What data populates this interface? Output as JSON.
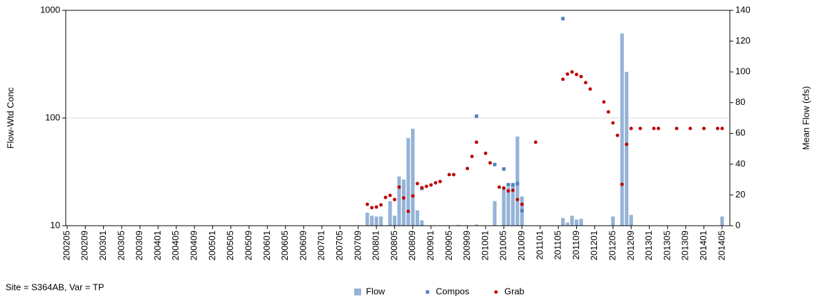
{
  "chart_data": {
    "type": "combo",
    "footnote": "Site = S364AB, Var = TP",
    "ylabel": "Flow-Wtd Conc",
    "y2label": "Mean Flow (cfs)",
    "ylog": true,
    "ylim": [
      10,
      1000
    ],
    "yticks": [
      10,
      100,
      1000
    ],
    "grid": true,
    "y2lim": [
      0,
      140
    ],
    "y2ticks": [
      0,
      20,
      40,
      60,
      80,
      100,
      120,
      140
    ],
    "legend": "bottom",
    "categories": [
      "200205",
      null,
      null,
      null,
      "200209",
      null,
      null,
      null,
      "200301",
      null,
      null,
      null,
      "200305",
      null,
      null,
      null,
      "200309",
      null,
      null,
      null,
      "200401",
      null,
      null,
      null,
      "200405",
      null,
      null,
      null,
      "200409",
      null,
      null,
      null,
      "200501",
      null,
      null,
      null,
      "200505",
      null,
      null,
      null,
      "200509",
      null,
      null,
      null,
      "200601",
      null,
      null,
      null,
      "200605",
      null,
      null,
      null,
      "200609",
      null,
      null,
      null,
      "200701",
      null,
      null,
      null,
      "200705",
      null,
      null,
      null,
      "200709",
      null,
      null,
      null,
      "200801",
      null,
      null,
      null,
      "200805",
      null,
      null,
      null,
      "200809",
      null,
      null,
      null,
      "200901",
      null,
      null,
      null,
      "200905",
      null,
      null,
      null,
      "200909",
      null,
      null,
      null,
      "201001",
      null,
      null,
      null,
      "201005",
      null,
      null,
      null,
      "201009",
      null,
      null,
      null,
      "201101",
      null,
      null,
      null,
      "201105",
      null,
      null,
      null,
      "201109",
      null,
      null,
      null,
      "201201",
      null,
      null,
      null,
      "201205",
      null,
      null,
      null,
      "201209",
      null,
      null,
      null,
      "201301",
      null,
      null,
      null,
      "201305",
      null,
      null,
      null,
      "201309",
      null,
      null,
      null,
      "201401",
      null,
      null,
      null,
      "201405",
      null
    ],
    "series": [
      {
        "name": "Flow",
        "type": "bar",
        "axis": "y2",
        "color": "#95b3d7",
        "marker": "square",
        "values": [
          null,
          null,
          null,
          null,
          null,
          null,
          null,
          null,
          null,
          null,
          null,
          null,
          null,
          null,
          null,
          null,
          null,
          null,
          null,
          null,
          null,
          null,
          null,
          null,
          null,
          null,
          null,
          null,
          null,
          null,
          null,
          null,
          null,
          null,
          null,
          null,
          null,
          null,
          null,
          null,
          null,
          null,
          null,
          null,
          null,
          null,
          null,
          null,
          null,
          null,
          null,
          null,
          null,
          null,
          null,
          null,
          null,
          null,
          null,
          null,
          null,
          null,
          null,
          null,
          null,
          null,
          8.5,
          6.5,
          6,
          6,
          null,
          16,
          6.5,
          32,
          30,
          57,
          63,
          10,
          3.5,
          null,
          null,
          null,
          null,
          null,
          null,
          null,
          0.5,
          null,
          null,
          null,
          0.7,
          null,
          null,
          null,
          16,
          null,
          25,
          25,
          27,
          58,
          19,
          null,
          null,
          null,
          null,
          null,
          null,
          null,
          null,
          5,
          2,
          6.5,
          4,
          4.5,
          null,
          null,
          null,
          null,
          null,
          null,
          6,
          null,
          125,
          100,
          7,
          null,
          null,
          null,
          null,
          null,
          null,
          null,
          null,
          null,
          null,
          null,
          null,
          null,
          null,
          null,
          null,
          null,
          null,
          null,
          6,
          null
        ]
      },
      {
        "name": "Compos",
        "type": "scatter",
        "color": "#4f81bd",
        "marker": "square",
        "values": [
          null,
          null,
          null,
          null,
          null,
          null,
          null,
          null,
          null,
          null,
          null,
          null,
          null,
          null,
          null,
          null,
          null,
          null,
          null,
          null,
          null,
          null,
          null,
          null,
          null,
          null,
          null,
          null,
          null,
          null,
          null,
          null,
          null,
          null,
          null,
          null,
          null,
          null,
          null,
          null,
          null,
          null,
          null,
          null,
          null,
          null,
          null,
          null,
          null,
          null,
          null,
          null,
          null,
          null,
          null,
          null,
          null,
          null,
          null,
          null,
          null,
          null,
          null,
          null,
          null,
          null,
          null,
          null,
          null,
          null,
          null,
          null,
          null,
          null,
          null,
          null,
          null,
          null,
          22.2,
          null,
          null,
          null,
          null,
          null,
          null,
          null,
          null,
          null,
          null,
          null,
          104,
          null,
          null,
          null,
          37,
          null,
          33.6,
          24,
          24,
          24.6,
          13.8,
          null,
          null,
          null,
          null,
          null,
          null,
          null,
          null,
          838,
          null,
          null,
          null,
          null,
          null,
          null,
          null,
          null,
          null,
          null,
          null,
          null,
          null,
          null,
          null,
          null,
          null,
          null,
          null,
          null,
          null,
          null,
          null,
          null,
          null,
          null,
          null,
          null,
          null,
          null,
          null,
          null,
          null,
          null,
          null,
          null
        ]
      },
      {
        "name": "Grab",
        "type": "scatter",
        "color": "#c00000",
        "marker": "circle",
        "values": [
          null,
          null,
          null,
          null,
          null,
          null,
          null,
          null,
          null,
          null,
          null,
          null,
          null,
          null,
          null,
          null,
          null,
          null,
          null,
          null,
          null,
          null,
          null,
          null,
          null,
          null,
          null,
          null,
          null,
          null,
          null,
          null,
          null,
          null,
          null,
          null,
          null,
          null,
          null,
          null,
          null,
          null,
          null,
          null,
          null,
          null,
          null,
          null,
          null,
          null,
          null,
          null,
          null,
          null,
          null,
          null,
          null,
          null,
          null,
          null,
          null,
          null,
          null,
          null,
          null,
          null,
          15.8,
          14.7,
          14.9,
          15.6,
          18.3,
          19.1,
          17.5,
          22.8,
          18.1,
          13.6,
          18.9,
          24.6,
          22.5,
          23.2,
          23.9,
          25.0,
          25.7,
          null,
          29.8,
          29.8,
          null,
          null,
          34,
          44,
          59.6,
          null,
          47,
          38.3,
          null,
          22.8,
          22.4,
          21.0,
          21.3,
          17.5,
          15.8,
          null,
          null,
          59.6,
          null,
          null,
          null,
          null,
          null,
          229,
          256,
          268,
          254,
          243,
          213,
          186,
          null,
          null,
          141,
          114,
          90,
          69,
          24.2,
          57,
          80,
          null,
          80,
          null,
          null,
          80,
          80,
          null,
          null,
          null,
          80,
          null,
          null,
          80,
          null,
          null,
          80,
          null,
          null,
          80,
          80,
          null
        ]
      }
    ]
  }
}
